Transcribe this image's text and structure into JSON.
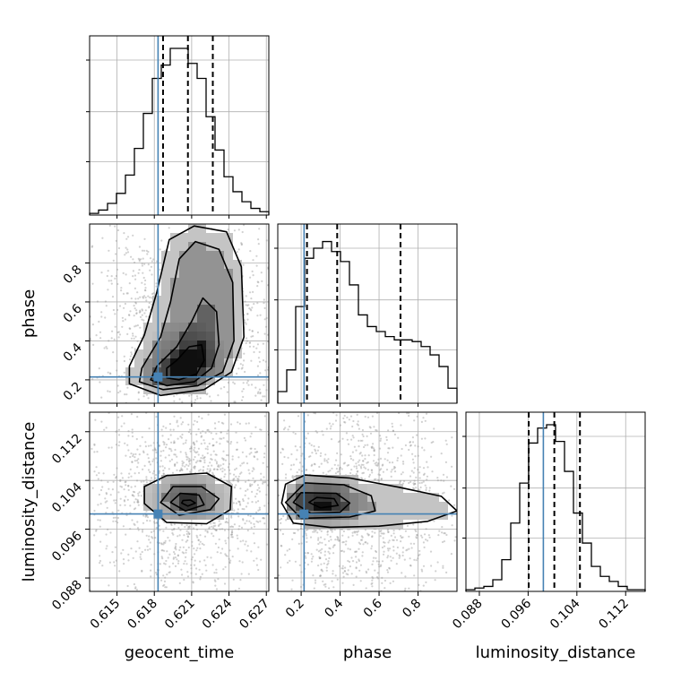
{
  "chart_data": {
    "type": "corner",
    "truth_color": "#4682b4",
    "parameters": [
      {
        "name": "geocent_time",
        "range": [
          0.6128,
          0.6272
        ],
        "ticks": [
          "0.615",
          "0.618",
          "0.621",
          "0.624",
          "0.627"
        ],
        "truth": 0.6183,
        "quantiles": [
          0.6187,
          0.6207,
          0.6227
        ],
        "hist": [
          0.01,
          0.03,
          0.07,
          0.13,
          0.24,
          0.4,
          0.61,
          0.82,
          0.9,
          1.0,
          1.0,
          0.91,
          0.82,
          0.59,
          0.39,
          0.23,
          0.14,
          0.08,
          0.04,
          0.02
        ]
      },
      {
        "name": "phase",
        "range": [
          0.08,
          1.0
        ],
        "ticks": [
          "0.2",
          "0.4",
          "0.6",
          "0.8"
        ],
        "truth": 0.215,
        "quantiles": [
          0.23,
          0.385,
          0.71
        ],
        "hist": [
          0.07,
          0.2,
          0.58,
          0.87,
          0.93,
          0.97,
          0.91,
          0.85,
          0.71,
          0.53,
          0.46,
          0.43,
          0.4,
          0.38,
          0.38,
          0.37,
          0.34,
          0.29,
          0.22,
          0.09
        ]
      },
      {
        "name": "luminosity_distance",
        "range": [
          0.0858,
          0.1152
        ],
        "ticks": [
          "0.088",
          "0.096",
          "0.104",
          "0.112"
        ],
        "truth": 0.0985,
        "quantiles": [
          0.0961,
          0.1003,
          0.1045
        ],
        "hist": [
          0.01,
          0.02,
          0.03,
          0.07,
          0.19,
          0.41,
          0.65,
          0.89,
          0.98,
          1.0,
          0.9,
          0.72,
          0.47,
          0.29,
          0.15,
          0.09,
          0.06,
          0.03,
          0.01,
          0.01
        ]
      }
    ],
    "pairs": [
      {
        "x": "geocent_time",
        "y": "phase",
        "contours": [
          [
            [
              0.619,
              0.21
            ],
            [
              0.62,
              0.2
            ],
            [
              0.6214,
              0.23
            ],
            [
              0.622,
              0.3
            ],
            [
              0.6218,
              0.38
            ],
            [
              0.6208,
              0.37
            ],
            [
              0.6198,
              0.3
            ],
            [
              0.619,
              0.26
            ]
          ],
          [
            [
              0.6177,
              0.2
            ],
            [
              0.619,
              0.17
            ],
            [
              0.6212,
              0.19
            ],
            [
              0.6226,
              0.26
            ],
            [
              0.6232,
              0.38
            ],
            [
              0.623,
              0.55
            ],
            [
              0.6219,
              0.62
            ],
            [
              0.621,
              0.5
            ],
            [
              0.6198,
              0.37
            ],
            [
              0.6182,
              0.27
            ]
          ],
          [
            [
              0.6168,
              0.19
            ],
            [
              0.6187,
              0.15
            ],
            [
              0.6215,
              0.17
            ],
            [
              0.6235,
              0.24
            ],
            [
              0.6244,
              0.4
            ],
            [
              0.6243,
              0.7
            ],
            [
              0.6232,
              0.87
            ],
            [
              0.6213,
              0.91
            ],
            [
              0.62,
              0.82
            ],
            [
              0.6193,
              0.6
            ],
            [
              0.6185,
              0.42
            ],
            [
              0.617,
              0.26
            ]
          ],
          [
            [
              0.616,
              0.18
            ],
            [
              0.6185,
              0.12
            ],
            [
              0.622,
              0.15
            ],
            [
              0.6242,
              0.24
            ],
            [
              0.6252,
              0.42
            ],
            [
              0.625,
              0.78
            ],
            [
              0.6238,
              0.96
            ],
            [
              0.6212,
              0.99
            ],
            [
              0.6192,
              0.92
            ],
            [
              0.6182,
              0.65
            ],
            [
              0.6172,
              0.43
            ],
            [
              0.616,
              0.27
            ]
          ]
        ]
      },
      {
        "x": "geocent_time",
        "y": "luminosity_distance",
        "contours": [
          [
            [
              0.6202,
              0.1003
            ],
            [
              0.6207,
              0.0998
            ],
            [
              0.6213,
              0.1003
            ],
            [
              0.6209,
              0.1008
            ],
            [
              0.6203,
              0.1007
            ]
          ],
          [
            [
              0.6193,
              0.1004
            ],
            [
              0.6205,
              0.099
            ],
            [
              0.622,
              0.1
            ],
            [
              0.6216,
              0.1016
            ],
            [
              0.6201,
              0.1019
            ]
          ],
          [
            [
              0.6185,
              0.1004
            ],
            [
              0.62,
              0.0983
            ],
            [
              0.6225,
              0.0992
            ],
            [
              0.6232,
              0.101
            ],
            [
              0.6218,
              0.103
            ],
            [
              0.6195,
              0.103
            ]
          ],
          [
            [
              0.6172,
              0.1002
            ],
            [
              0.619,
              0.0971
            ],
            [
              0.6222,
              0.0969
            ],
            [
              0.6241,
              0.0992
            ],
            [
              0.6242,
              0.103
            ],
            [
              0.6222,
              0.1052
            ],
            [
              0.619,
              0.1048
            ],
            [
              0.6172,
              0.103
            ]
          ]
        ]
      },
      {
        "x": "phase",
        "y": "luminosity_distance",
        "contours": [
          [
            [
              0.24,
              0.1004
            ],
            [
              0.3,
              0.0995
            ],
            [
              0.39,
              0.0999
            ],
            [
              0.37,
              0.101
            ],
            [
              0.28,
              0.1012
            ]
          ],
          [
            [
              0.16,
              0.1004
            ],
            [
              0.25,
              0.0986
            ],
            [
              0.4,
              0.0988
            ],
            [
              0.45,
              0.1003
            ],
            [
              0.38,
              0.1019
            ],
            [
              0.2,
              0.102
            ]
          ],
          [
            [
              0.12,
              0.1004
            ],
            [
              0.2,
              0.0978
            ],
            [
              0.45,
              0.098
            ],
            [
              0.58,
              0.099
            ],
            [
              0.56,
              0.1015
            ],
            [
              0.42,
              0.1033
            ],
            [
              0.22,
              0.1036
            ]
          ],
          [
            [
              0.1,
              0.1003
            ],
            [
              0.16,
              0.097
            ],
            [
              0.35,
              0.0963
            ],
            [
              0.6,
              0.0965
            ],
            [
              0.85,
              0.0973
            ],
            [
              1.0,
              0.099
            ],
            [
              0.92,
              0.1014
            ],
            [
              0.7,
              0.1029
            ],
            [
              0.45,
              0.1044
            ],
            [
              0.22,
              0.1049
            ],
            [
              0.12,
              0.1034
            ]
          ]
        ]
      }
    ]
  }
}
